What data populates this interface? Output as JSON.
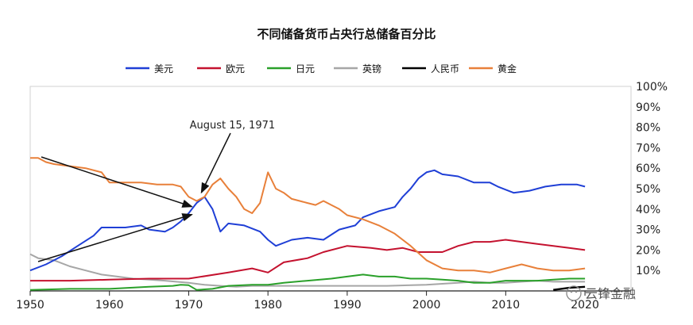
{
  "chart_data": {
    "type": "line",
    "title": "不同储备货币占央行总储备百分比",
    "xlim": [
      1950,
      2022
    ],
    "ylim": [
      0,
      100
    ],
    "x_ticks": [
      1950,
      1960,
      1970,
      1980,
      1990,
      2000,
      2010,
      2020
    ],
    "y_ticks": [
      "10%",
      "20%",
      "30%",
      "40%",
      "50%",
      "60%",
      "70%",
      "80%",
      "90%",
      "100%"
    ],
    "y_tick_values": [
      10,
      20,
      30,
      40,
      50,
      60,
      70,
      80,
      90,
      100
    ],
    "legend_position": "top",
    "grid": false,
    "series": [
      {
        "name": "美元",
        "color": "#1f3fd6",
        "points": [
          [
            1950,
            10
          ],
          [
            1952,
            13
          ],
          [
            1954,
            17
          ],
          [
            1956,
            22
          ],
          [
            1958,
            27
          ],
          [
            1959,
            31
          ],
          [
            1962,
            31
          ],
          [
            1964,
            32
          ],
          [
            1965,
            30
          ],
          [
            1967,
            29
          ],
          [
            1968,
            31
          ],
          [
            1969,
            34
          ],
          [
            1970,
            38
          ],
          [
            1971,
            43
          ],
          [
            1972,
            46
          ],
          [
            1973,
            40
          ],
          [
            1974,
            29
          ],
          [
            1975,
            33
          ],
          [
            1977,
            32
          ],
          [
            1979,
            29
          ],
          [
            1980,
            25
          ],
          [
            1981,
            22
          ],
          [
            1983,
            25
          ],
          [
            1985,
            26
          ],
          [
            1987,
            25
          ],
          [
            1989,
            30
          ],
          [
            1991,
            32
          ],
          [
            1992,
            36
          ],
          [
            1994,
            39
          ],
          [
            1996,
            41
          ],
          [
            1997,
            46
          ],
          [
            1998,
            50
          ],
          [
            1999,
            55
          ],
          [
            2000,
            58
          ],
          [
            2001,
            59
          ],
          [
            2002,
            57
          ],
          [
            2004,
            56
          ],
          [
            2006,
            53
          ],
          [
            2008,
            53
          ],
          [
            2009,
            51
          ],
          [
            2011,
            48
          ],
          [
            2013,
            49
          ],
          [
            2015,
            51
          ],
          [
            2017,
            52
          ],
          [
            2019,
            52
          ],
          [
            2020,
            51
          ]
        ]
      },
      {
        "name": "欧元",
        "color": "#c4122f",
        "points": [
          [
            1950,
            5
          ],
          [
            1955,
            5
          ],
          [
            1960,
            5.5
          ],
          [
            1965,
            6
          ],
          [
            1970,
            6
          ],
          [
            1975,
            9
          ],
          [
            1978,
            11
          ],
          [
            1980,
            9
          ],
          [
            1982,
            14
          ],
          [
            1985,
            16
          ],
          [
            1987,
            19
          ],
          [
            1990,
            22
          ],
          [
            1993,
            21
          ],
          [
            1995,
            20
          ],
          [
            1997,
            21
          ],
          [
            1999,
            19
          ],
          [
            2002,
            19
          ],
          [
            2004,
            22
          ],
          [
            2006,
            24
          ],
          [
            2008,
            24
          ],
          [
            2010,
            25
          ],
          [
            2012,
            24
          ],
          [
            2014,
            23
          ],
          [
            2016,
            22
          ],
          [
            2018,
            21
          ],
          [
            2020,
            20
          ]
        ]
      },
      {
        "name": "日元",
        "color": "#2aa02a",
        "points": [
          [
            1950,
            0.5
          ],
          [
            1955,
            1
          ],
          [
            1960,
            1
          ],
          [
            1965,
            2
          ],
          [
            1968,
            2.5
          ],
          [
            1969,
            3
          ],
          [
            1970,
            2.8
          ],
          [
            1971,
            0.5
          ],
          [
            1973,
            1
          ],
          [
            1975,
            2.5
          ],
          [
            1978,
            3
          ],
          [
            1980,
            3
          ],
          [
            1982,
            4
          ],
          [
            1985,
            5
          ],
          [
            1988,
            6
          ],
          [
            1990,
            7
          ],
          [
            1992,
            8
          ],
          [
            1994,
            7
          ],
          [
            1996,
            7
          ],
          [
            1998,
            6
          ],
          [
            2000,
            6
          ],
          [
            2002,
            5.5
          ],
          [
            2004,
            5
          ],
          [
            2006,
            4
          ],
          [
            2008,
            4
          ],
          [
            2010,
            5
          ],
          [
            2012,
            5
          ],
          [
            2014,
            5
          ],
          [
            2016,
            5.5
          ],
          [
            2018,
            6
          ],
          [
            2020,
            6
          ]
        ]
      },
      {
        "name": "英镑",
        "color": "#a6a6a6",
        "points": [
          [
            1950,
            18
          ],
          [
            1951,
            16
          ],
          [
            1953,
            15
          ],
          [
            1955,
            12
          ],
          [
            1957,
            10
          ],
          [
            1959,
            8
          ],
          [
            1961,
            7
          ],
          [
            1963,
            6
          ],
          [
            1965,
            5.5
          ],
          [
            1967,
            5
          ],
          [
            1970,
            4
          ],
          [
            1972,
            3
          ],
          [
            1974,
            2.5
          ],
          [
            1976,
            2
          ],
          [
            1978,
            2.5
          ],
          [
            1980,
            2.5
          ],
          [
            1985,
            2.5
          ],
          [
            1990,
            2.5
          ],
          [
            1995,
            2.5
          ],
          [
            2000,
            3
          ],
          [
            2004,
            4
          ],
          [
            2006,
            4.5
          ],
          [
            2008,
            4
          ],
          [
            2010,
            4
          ],
          [
            2012,
            4.5
          ],
          [
            2014,
            5
          ],
          [
            2016,
            4.5
          ],
          [
            2018,
            4.5
          ],
          [
            2020,
            4.5
          ]
        ]
      },
      {
        "name": "人民币",
        "color": "#000000",
        "points": [
          [
            2016,
            0.5
          ],
          [
            2017,
            1
          ],
          [
            2018,
            1.5
          ],
          [
            2019,
            1.8
          ],
          [
            2020,
            2
          ]
        ]
      },
      {
        "name": "黄金",
        "color": "#e8803a",
        "points": [
          [
            1950,
            65
          ],
          [
            1951,
            65
          ],
          [
            1952,
            63
          ],
          [
            1953,
            62
          ],
          [
            1955,
            61
          ],
          [
            1957,
            60
          ],
          [
            1959,
            58
          ],
          [
            1960,
            53
          ],
          [
            1962,
            53
          ],
          [
            1964,
            53
          ],
          [
            1966,
            52
          ],
          [
            1968,
            52
          ],
          [
            1969,
            51
          ],
          [
            1970,
            46
          ],
          [
            1971,
            44
          ],
          [
            1972,
            46
          ],
          [
            1973,
            52
          ],
          [
            1974,
            55
          ],
          [
            1975,
            50
          ],
          [
            1976,
            46
          ],
          [
            1977,
            40
          ],
          [
            1978,
            38
          ],
          [
            1979,
            43
          ],
          [
            1980,
            58
          ],
          [
            1981,
            50
          ],
          [
            1982,
            48
          ],
          [
            1983,
            45
          ],
          [
            1984,
            44
          ],
          [
            1985,
            43
          ],
          [
            1986,
            42
          ],
          [
            1987,
            44
          ],
          [
            1988,
            42
          ],
          [
            1989,
            40
          ],
          [
            1990,
            37
          ],
          [
            1992,
            35
          ],
          [
            1994,
            32
          ],
          [
            1996,
            28
          ],
          [
            1998,
            22
          ],
          [
            2000,
            15
          ],
          [
            2002,
            11
          ],
          [
            2004,
            10
          ],
          [
            2006,
            10
          ],
          [
            2008,
            9
          ],
          [
            2010,
            11
          ],
          [
            2012,
            13
          ],
          [
            2014,
            11
          ],
          [
            2016,
            10
          ],
          [
            2018,
            10
          ],
          [
            2020,
            11
          ]
        ]
      }
    ],
    "annotation": {
      "text": "August 15, 1971",
      "x": 1971.5,
      "y": 81
    },
    "arrow_targets": [
      [
        1971,
        45
      ],
      [
        1971.2,
        42
      ]
    ]
  },
  "watermark": "云锋金融"
}
